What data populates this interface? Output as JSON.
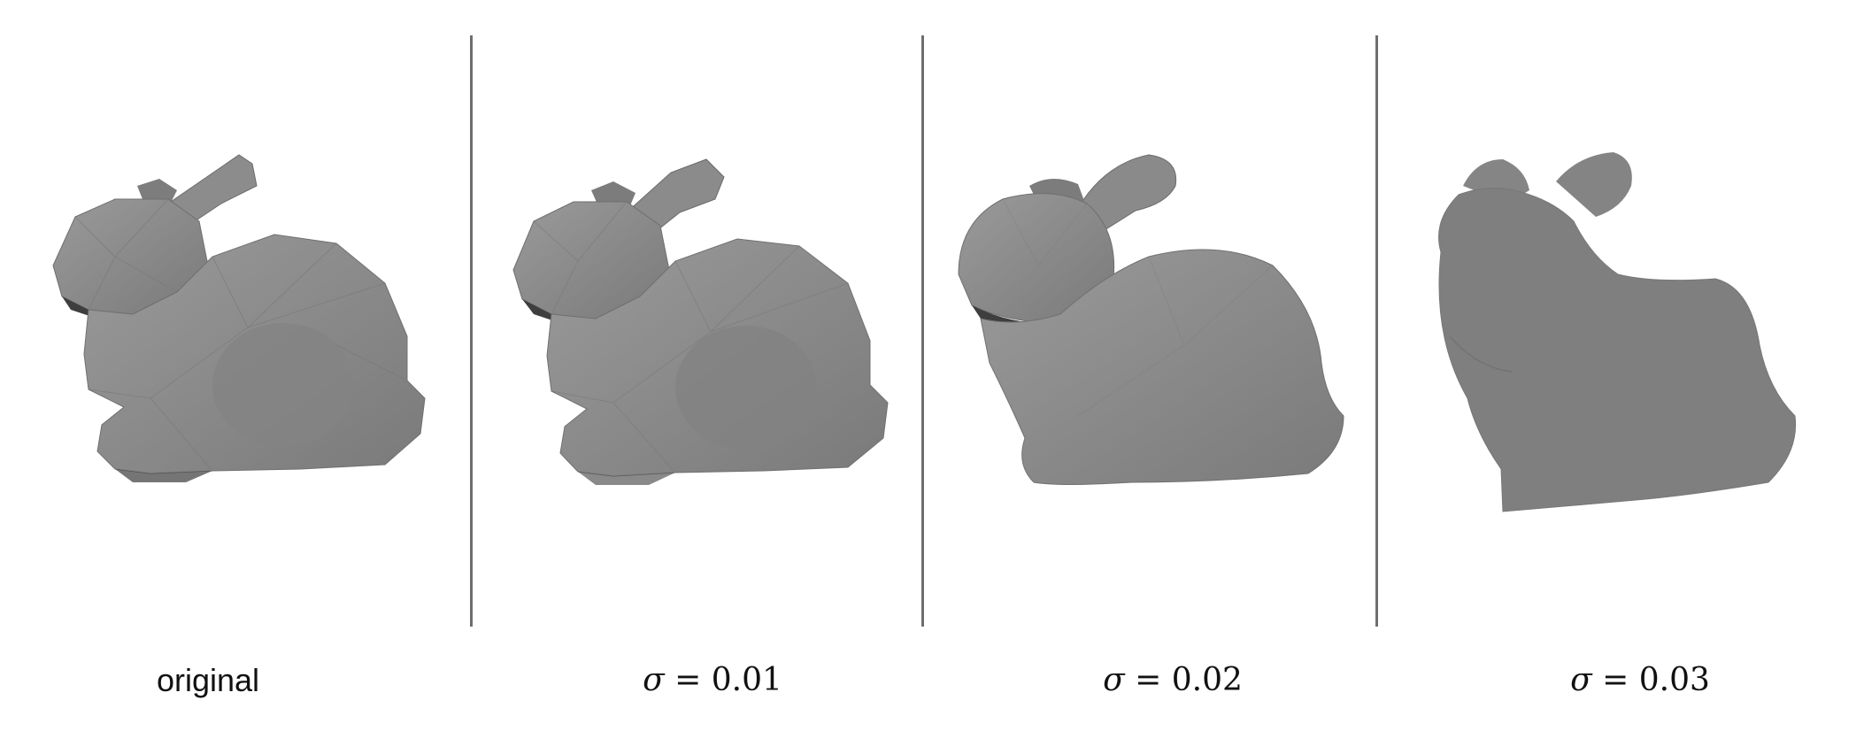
{
  "figure": {
    "panels": [
      {
        "id": "original",
        "caption": "original",
        "caption_style": "plain",
        "smoothness": "faceted",
        "shade": "#8a8a8a"
      },
      {
        "id": "sigma-001",
        "caption_symbol": "σ",
        "caption_eq": " = ",
        "caption_value": "0.01",
        "caption_style": "math",
        "smoothness": "faceted",
        "shade": "#878787"
      },
      {
        "id": "sigma-002",
        "caption_symbol": "σ",
        "caption_eq": " = ",
        "caption_value": "0.02",
        "caption_style": "math",
        "smoothness": "blobby",
        "shade": "#858585"
      },
      {
        "id": "sigma-003",
        "caption_symbol": "σ",
        "caption_eq": " = ",
        "caption_value": "0.03",
        "caption_style": "math",
        "smoothness": "smooth",
        "shade": "#7f7f7f"
      }
    ],
    "colors": {
      "background": "#ffffff",
      "divider": "#6e6e6e",
      "mesh": "#838383",
      "mesh_dark": "#4a4a4a",
      "text": "#111111"
    }
  }
}
